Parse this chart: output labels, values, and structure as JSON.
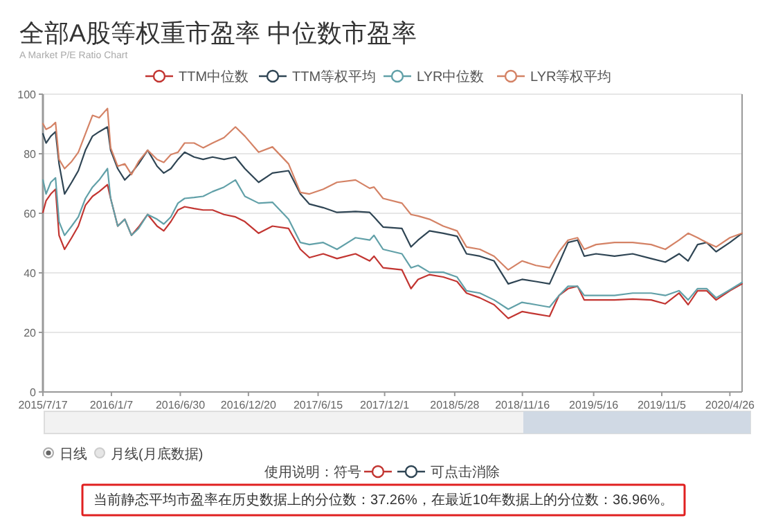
{
  "chart_data": {
    "type": "line",
    "title": "全部A股等权重市盈率 中位数市盈率",
    "subtitle": "A Market P/E Ratio Chart",
    "x": [
      "2015-07-17",
      "2015-07-25",
      "2015-08-06",
      "2015-08-18",
      "2015-08-27",
      "2015-09-10",
      "2015-09-28",
      "2015-10-15",
      "2015-11-02",
      "2015-11-20",
      "2015-12-07",
      "2015-12-28",
      "2016-01-05",
      "2016-01-23",
      "2016-02-10",
      "2016-02-27",
      "2016-03-16",
      "2016-04-08",
      "2016-05-02",
      "2016-05-19",
      "2016-06-06",
      "2016-06-24",
      "2016-07-11",
      "2016-08-04",
      "2016-08-27",
      "2016-09-20",
      "2016-10-19",
      "2016-11-17",
      "2016-12-11",
      "2017-01-15",
      "2017-02-19",
      "2017-04-01",
      "2017-05-01",
      "2017-05-24",
      "2017-06-28",
      "2017-08-02",
      "2017-09-18",
      "2017-10-24",
      "2017-11-04",
      "2017-11-27",
      "2018-01-14",
      "2018-02-06",
      "2018-02-24",
      "2018-03-25",
      "2018-04-29",
      "2018-06-03",
      "2018-06-27",
      "2018-07-31",
      "2018-09-05",
      "2018-10-11",
      "2018-11-15",
      "2018-12-20",
      "2019-01-24",
      "2019-02-17",
      "2019-03-12",
      "2019-04-05",
      "2019-04-22",
      "2019-05-22",
      "2019-07-08",
      "2019-08-23",
      "2019-10-09",
      "2019-11-14",
      "2019-12-19",
      "2020-01-11",
      "2020-02-04",
      "2020-02-27",
      "2020-03-22",
      "2020-04-26",
      "2020-05-27"
    ],
    "series": [
      {
        "name": "TTM中位数",
        "color": "#c23531",
        "values": [
          60.3,
          64.2,
          66.5,
          68.1,
          52.6,
          47.9,
          51.8,
          55.7,
          62.7,
          65.7,
          67.3,
          69.6,
          65.0,
          55.7,
          58.0,
          52.6,
          55.4,
          59.6,
          55.7,
          54.1,
          57.2,
          61.1,
          62.2,
          61.6,
          61.1,
          61.1,
          59.6,
          58.8,
          57.2,
          53.3,
          55.7,
          54.9,
          47.9,
          45.1,
          46.4,
          44.8,
          46.4,
          44.0,
          45.6,
          41.7,
          41.0,
          34.7,
          37.8,
          39.4,
          38.6,
          37.1,
          33.2,
          31.6,
          29.3,
          24.7,
          27.0,
          26.2,
          25.4,
          32.4,
          34.7,
          35.5,
          30.9,
          30.9,
          30.9,
          31.2,
          30.9,
          29.6,
          33.2,
          29.3,
          34.0,
          34.0,
          30.9,
          34.0,
          36.3
        ]
      },
      {
        "name": "TTM等权平均",
        "color": "#2f4554",
        "values": [
          86.7,
          83.6,
          85.9,
          87.4,
          76.6,
          66.5,
          70.4,
          74.3,
          81.2,
          85.9,
          87.4,
          89.0,
          81.2,
          75.0,
          71.2,
          73.5,
          76.6,
          81.2,
          75.8,
          73.5,
          75.0,
          78.1,
          80.5,
          78.9,
          78.1,
          78.9,
          78.1,
          78.9,
          75.0,
          70.4,
          73.5,
          74.3,
          66.5,
          63.1,
          61.9,
          60.3,
          60.6,
          60.3,
          58.8,
          55.4,
          54.9,
          48.7,
          51.0,
          54.1,
          53.3,
          52.3,
          46.4,
          45.6,
          44.0,
          36.3,
          37.8,
          37.1,
          36.3,
          43.3,
          50.2,
          51.0,
          45.6,
          46.4,
          45.6,
          46.4,
          44.8,
          43.6,
          46.4,
          44.0,
          49.5,
          50.2,
          47.1,
          50.2,
          53.3
        ]
      },
      {
        "name": "LYR中位数",
        "color": "#61a0a8",
        "values": [
          71.2,
          66.5,
          70.4,
          71.9,
          57.2,
          52.6,
          55.7,
          58.8,
          65.0,
          68.8,
          71.2,
          75.0,
          65.0,
          55.7,
          58.0,
          52.6,
          54.9,
          59.6,
          58.0,
          56.4,
          58.8,
          63.4,
          65.0,
          65.3,
          65.7,
          67.3,
          68.8,
          71.2,
          65.7,
          63.4,
          63.7,
          58.0,
          50.2,
          49.5,
          50.2,
          47.9,
          51.8,
          51.0,
          52.6,
          47.9,
          46.4,
          41.7,
          42.5,
          40.2,
          40.2,
          38.6,
          34.0,
          33.2,
          30.9,
          27.8,
          30.1,
          29.3,
          28.5,
          32.4,
          35.5,
          35.5,
          32.4,
          32.4,
          32.4,
          33.2,
          33.2,
          32.4,
          34.0,
          30.9,
          34.7,
          34.7,
          31.6,
          34.3,
          36.8
        ]
      },
      {
        "name": "LYR等权平均",
        "color": "#d48265",
        "values": [
          90.1,
          88.2,
          89.0,
          90.5,
          78.1,
          75.0,
          77.4,
          80.5,
          86.7,
          92.9,
          92.1,
          95.2,
          82.0,
          75.8,
          76.6,
          73.0,
          77.4,
          81.2,
          78.1,
          77.1,
          79.7,
          80.5,
          83.6,
          83.6,
          82.0,
          83.6,
          85.4,
          89.0,
          85.9,
          80.5,
          82.3,
          76.6,
          67.0,
          66.5,
          68.1,
          70.4,
          71.2,
          68.4,
          68.8,
          65.0,
          63.4,
          59.6,
          59.1,
          58.0,
          55.7,
          54.1,
          48.7,
          47.9,
          45.6,
          41.0,
          44.0,
          42.5,
          41.7,
          47.1,
          51.0,
          51.8,
          47.9,
          49.5,
          50.2,
          50.2,
          49.5,
          47.9,
          51.0,
          53.3,
          51.8,
          50.2,
          48.7,
          51.8,
          53.3
        ]
      }
    ],
    "xlim": [
      "2015-07-17",
      "2020-05-27"
    ],
    "xticks": [
      {
        "value": "2015-07-17",
        "label": "2015/7/17"
      },
      {
        "value": "2016-01-07",
        "label": "2016/1/7"
      },
      {
        "value": "2016-06-30",
        "label": "2016/6/30"
      },
      {
        "value": "2016-12-20",
        "label": "2016/12/20"
      },
      {
        "value": "2017-06-15",
        "label": "2017/6/15"
      },
      {
        "value": "2017-12-01",
        "label": "2017/12/1"
      },
      {
        "value": "2018-05-28",
        "label": "2018/5/28"
      },
      {
        "value": "2018-11-16",
        "label": "2018/11/16"
      },
      {
        "value": "2019-05-16",
        "label": "2019/5/16"
      },
      {
        "value": "2019-11-05",
        "label": "2019/11/5"
      },
      {
        "value": "2020-04-26",
        "label": "2020/4/26"
      }
    ],
    "ylim": [
      0,
      100
    ],
    "yticks": [
      0,
      20,
      40,
      60,
      80,
      100
    ],
    "grid": "y",
    "legend": "top",
    "annotations": [
      "日线",
      "月线(月底数据)",
      "使用说明：符号",
      "可点击消除",
      "当前静态平均市盈率在历史数据上的分位数：37.26%，在最近10年数据上的分位数：36.96%。"
    ]
  }
}
